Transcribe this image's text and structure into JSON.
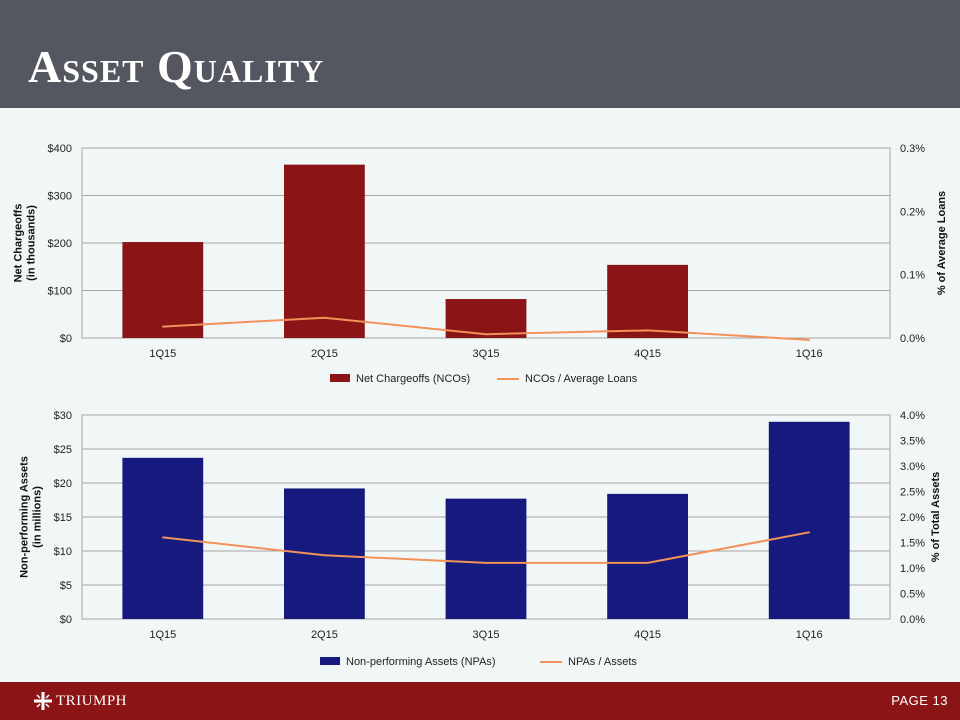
{
  "page": {
    "title": "Asset Quality",
    "footer": {
      "logo_text": "TRIUMPH",
      "page_label": "PAGE 13"
    }
  },
  "colors": {
    "header_bg": "#545760",
    "footer_bg": "#8b1516",
    "ncos_bar": "#8b1516",
    "npas_bar": "#161a7e",
    "line": "#f2915a"
  },
  "icons": [
    "cross-logo-icon"
  ],
  "chart_data": [
    {
      "type": "bar",
      "categories": [
        "1Q15",
        "2Q15",
        "3Q15",
        "4Q15",
        "1Q16"
      ],
      "series": [
        {
          "name": "Net Chargeoffs (NCOs)",
          "type": "bar",
          "axis": "left",
          "values": [
            202,
            365,
            82,
            154,
            0
          ]
        },
        {
          "name": "NCOs / Average Loans",
          "type": "line",
          "axis": "right",
          "values": [
            0.018,
            0.032,
            0.006,
            0.012,
            -0.003
          ]
        }
      ],
      "ylabel": "Net Chargeoffs\n(in thousands)",
      "ylim": [
        0,
        400
      ],
      "yticks": [
        "$0",
        "$100",
        "$200",
        "$300",
        "$400"
      ],
      "y2label": "% of Average Loans",
      "y2lim": [
        0,
        0.3
      ],
      "y2ticks": [
        "0.0%",
        "0.1%",
        "0.2%",
        "0.3%"
      ],
      "grid": true,
      "legend": "bottom"
    },
    {
      "type": "bar",
      "categories": [
        "1Q15",
        "2Q15",
        "3Q15",
        "4Q15",
        "1Q16"
      ],
      "series": [
        {
          "name": "Non-performing Assets (NPAs)",
          "type": "bar",
          "axis": "left",
          "values": [
            23.7,
            19.2,
            17.7,
            18.4,
            29.0
          ]
        },
        {
          "name": "NPAs / Assets",
          "type": "line",
          "axis": "right",
          "values": [
            1.6,
            1.25,
            1.1,
            1.1,
            1.7
          ]
        }
      ],
      "ylabel": "Non-performing Assets\n(in millions)",
      "ylim": [
        0,
        30
      ],
      "yticks": [
        "$0",
        "$5",
        "$10",
        "$15",
        "$20",
        "$25",
        "$30"
      ],
      "y2label": "% of Total Assets",
      "y2lim": [
        0,
        4.0
      ],
      "y2ticks": [
        "0.0%",
        "0.5%",
        "1.0%",
        "1.5%",
        "2.0%",
        "2.5%",
        "3.0%",
        "3.5%",
        "4.0%"
      ],
      "grid": true,
      "legend": "bottom"
    }
  ]
}
